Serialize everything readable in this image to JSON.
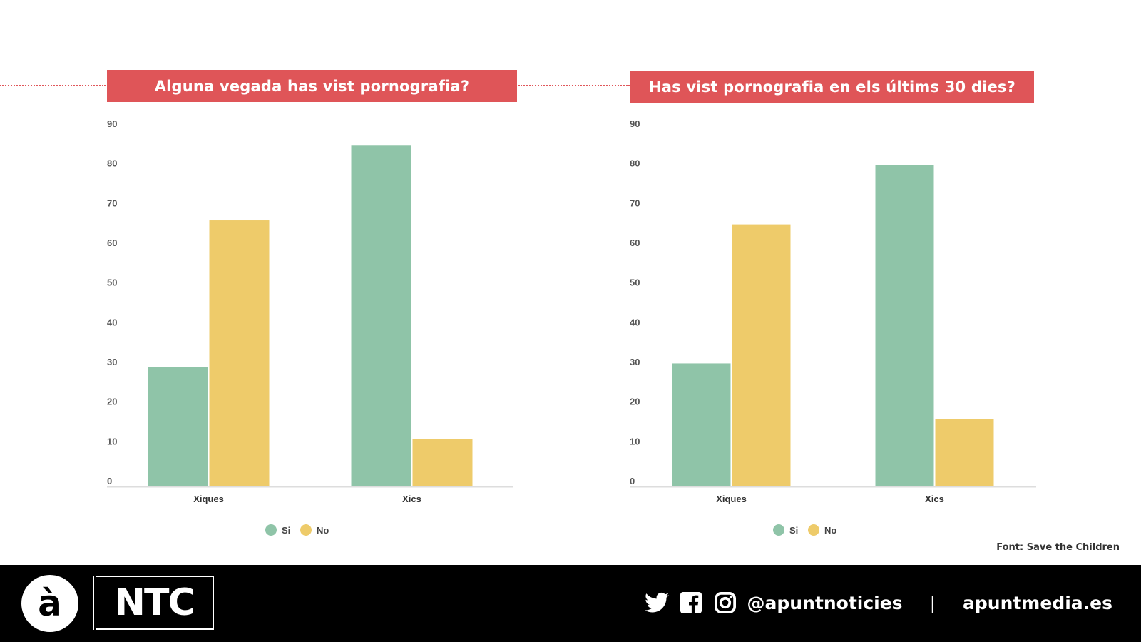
{
  "colors": {
    "si": "#8fc4a8",
    "no": "#eecb6a",
    "title_bg": "#df5558",
    "footer_bg": "#000000"
  },
  "chart_data": [
    {
      "type": "bar",
      "title": "Alguna vegada has vist pornografia?",
      "categories": [
        "Xiques",
        "Xics"
      ],
      "series": [
        {
          "name": "Si",
          "values": [
            30,
            86
          ]
        },
        {
          "name": "No",
          "values": [
            67,
            12
          ]
        }
      ],
      "ylim": [
        0,
        90
      ],
      "yticks": [
        0,
        10,
        20,
        30,
        40,
        50,
        60,
        70,
        80,
        90
      ],
      "legend": "bottom-center",
      "grid": false
    },
    {
      "type": "bar",
      "title": "Has vist pornografia en els últims 30 dies?",
      "categories": [
        "Xiques",
        "Xics"
      ],
      "series": [
        {
          "name": "Si",
          "values": [
            31,
            81
          ]
        },
        {
          "name": "No",
          "values": [
            66,
            17
          ]
        }
      ],
      "ylim": [
        0,
        90
      ],
      "yticks": [
        0,
        10,
        20,
        30,
        40,
        50,
        60,
        70,
        80,
        90
      ],
      "legend": "bottom-center",
      "grid": false
    }
  ],
  "source": "Font: Save the Children",
  "footer": {
    "logo_letter": "à",
    "logo_text": "NTC",
    "icons": [
      "twitter-icon",
      "facebook-icon",
      "instagram-icon"
    ],
    "handle": "@apuntnoticies",
    "separator": "|",
    "website": "apuntmedia.es"
  }
}
